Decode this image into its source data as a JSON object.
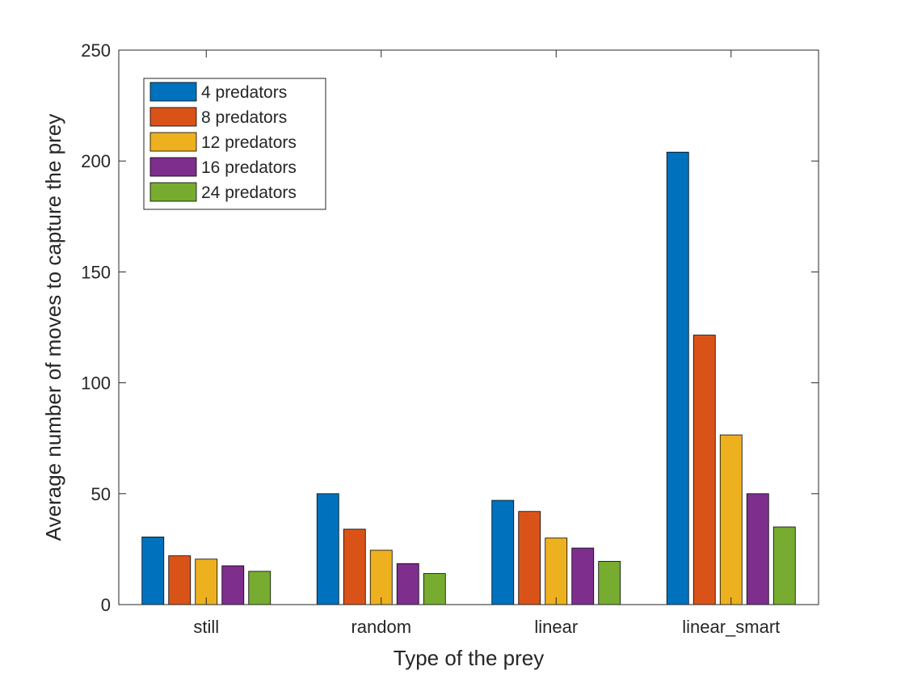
{
  "chart_data": {
    "type": "bar",
    "title": "",
    "xlabel": "Type of the prey",
    "ylabel": "Average number of moves to capture the prey",
    "categories": [
      "still",
      "random",
      "linear",
      "linear_smart"
    ],
    "ylim": [
      0,
      250
    ],
    "yticks": [
      0,
      50,
      100,
      150,
      200,
      250
    ],
    "grid": false,
    "legend_position": "top-left",
    "series": [
      {
        "name": "4 predators",
        "color": "#0072BD",
        "values": [
          30.5,
          50,
          47,
          204
        ]
      },
      {
        "name": "8 predators",
        "color": "#D95319",
        "values": [
          22,
          34,
          42,
          121.5
        ]
      },
      {
        "name": "12 predators",
        "color": "#EDB120",
        "values": [
          20.5,
          24.5,
          30,
          76.5
        ]
      },
      {
        "name": "16 predators",
        "color": "#7E2F8E",
        "values": [
          17.5,
          18.5,
          25.5,
          50
        ]
      },
      {
        "name": "24 predators",
        "color": "#77AC30",
        "values": [
          15,
          14,
          19.5,
          35
        ]
      }
    ]
  }
}
